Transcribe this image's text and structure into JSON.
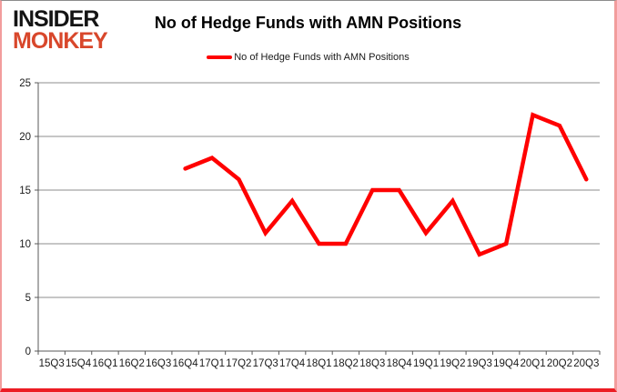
{
  "logo": {
    "top": "INSIDER",
    "bottom": "MONKEY"
  },
  "title": "No of Hedge Funds with AMN Positions",
  "legend": {
    "label": "No of Hedge Funds with AMN Positions"
  },
  "chart_data": {
    "type": "line",
    "title": "No of Hedge Funds with AMN Positions",
    "categories": [
      "15Q3",
      "15Q4",
      "16Q1",
      "16Q2",
      "16Q3",
      "16Q4",
      "17Q1",
      "17Q2",
      "17Q3",
      "17Q4",
      "18Q1",
      "18Q2",
      "18Q3",
      "18Q4",
      "19Q1",
      "19Q2",
      "19Q3",
      "19Q4",
      "20Q1",
      "20Q2",
      "20Q3"
    ],
    "series": [
      {
        "name": "No of Hedge Funds with AMN Positions",
        "color": "#ff0000",
        "values": [
          null,
          null,
          null,
          null,
          null,
          17,
          18,
          16,
          11,
          14,
          10,
          10,
          15,
          15,
          11,
          14,
          9,
          10,
          22,
          21,
          16
        ]
      }
    ],
    "xlabel": "",
    "ylabel": "",
    "ylim": [
      0,
      25
    ],
    "yticks": [
      0,
      5,
      10,
      15,
      20,
      25
    ],
    "grid": true,
    "legend_position": "top-center"
  },
  "colors": {
    "line": "#ff0000",
    "grid": "#8c8c8c",
    "axis": "#595959",
    "tick_label": "#1a1a1a",
    "logo_accent": "#d8472b",
    "frame_bottom": "#ec1c24"
  }
}
